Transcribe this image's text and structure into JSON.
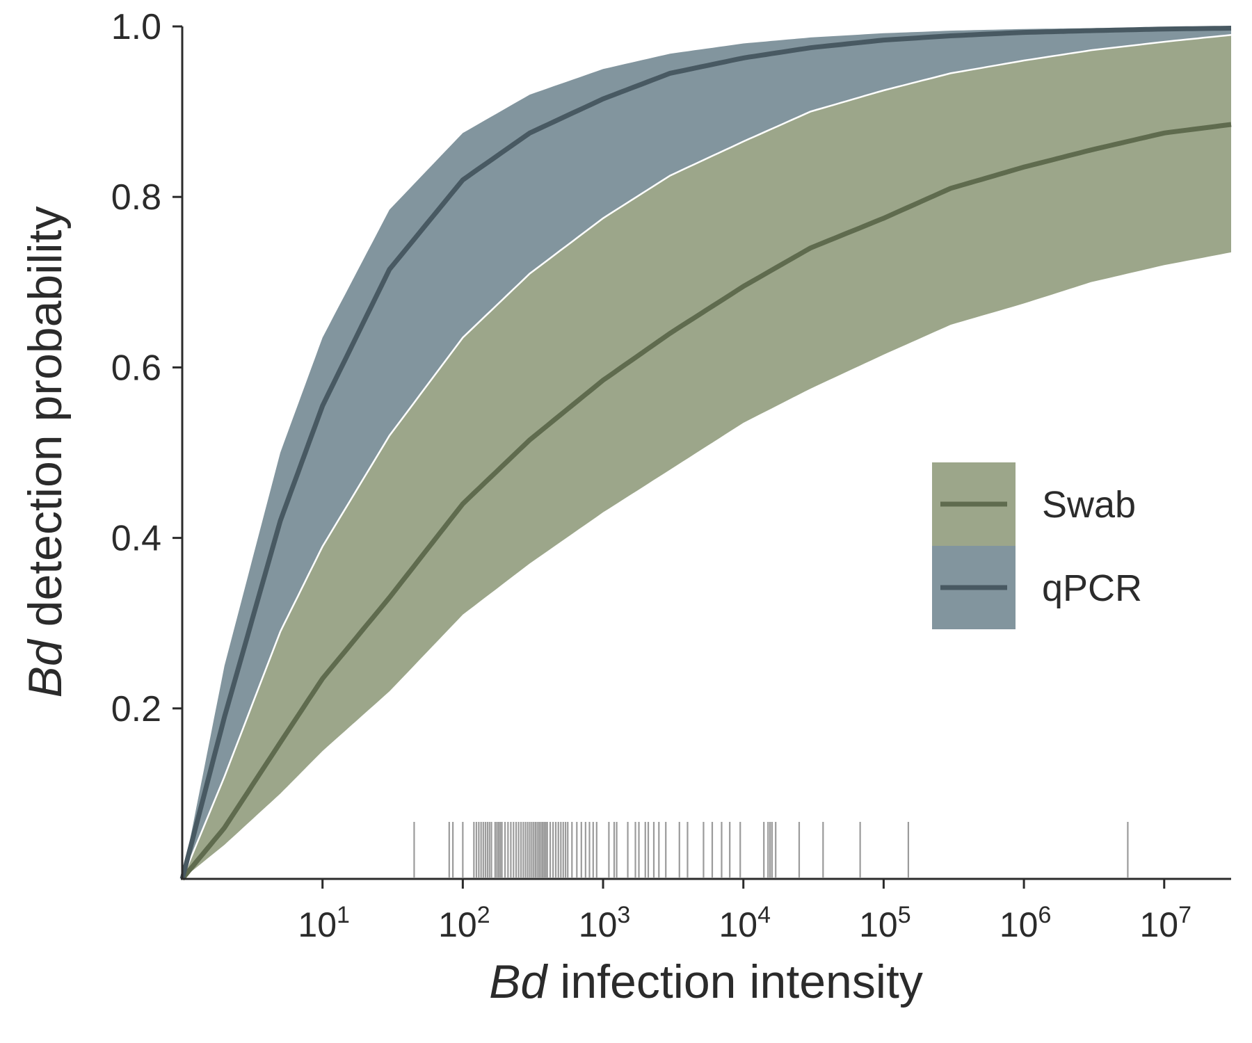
{
  "chart_data": {
    "type": "line",
    "xscale": "log",
    "xlim": [
      1,
      30000000
    ],
    "ylim": [
      0,
      1.0
    ],
    "grid": false,
    "xlabel": {
      "italic": "Bd",
      "rest": " infection intensity"
    },
    "ylabel": {
      "italic": "Bd",
      "rest": " detection probability"
    },
    "x_ticks": [
      {
        "value": 10,
        "base": "10",
        "exp": "1"
      },
      {
        "value": 100,
        "base": "10",
        "exp": "2"
      },
      {
        "value": 1000,
        "base": "10",
        "exp": "3"
      },
      {
        "value": 10000,
        "base": "10",
        "exp": "4"
      },
      {
        "value": 100000,
        "base": "10",
        "exp": "5"
      },
      {
        "value": 1000000,
        "base": "10",
        "exp": "6"
      },
      {
        "value": 10000000,
        "base": "10",
        "exp": "7"
      }
    ],
    "y_ticks": [
      {
        "value": 0.2,
        "label": "0.2"
      },
      {
        "value": 0.4,
        "label": "0.4"
      },
      {
        "value": 0.6,
        "label": "0.6"
      },
      {
        "value": 0.8,
        "label": "0.8"
      },
      {
        "value": 1.0,
        "label": "1.0"
      }
    ],
    "legend": {
      "position": "center-right"
    },
    "series": [
      {
        "name": "Swab",
        "line_color": "#5f6b4e",
        "band_color": "#9ca68a",
        "x": [
          1,
          2,
          5,
          10,
          30,
          100,
          300,
          1000,
          3000,
          10000,
          30000,
          100000,
          300000,
          1000000,
          3000000,
          10000000,
          30000000
        ],
        "mean": [
          0.0,
          0.06,
          0.16,
          0.235,
          0.33,
          0.44,
          0.515,
          0.585,
          0.64,
          0.695,
          0.74,
          0.775,
          0.81,
          0.835,
          0.855,
          0.875,
          0.885
        ],
        "lower": [
          0.0,
          0.04,
          0.1,
          0.15,
          0.22,
          0.31,
          0.37,
          0.43,
          0.48,
          0.535,
          0.575,
          0.615,
          0.65,
          0.675,
          0.7,
          0.72,
          0.735
        ],
        "upper": [
          0.0,
          0.12,
          0.29,
          0.39,
          0.52,
          0.635,
          0.71,
          0.775,
          0.825,
          0.865,
          0.9,
          0.925,
          0.945,
          0.96,
          0.972,
          0.982,
          0.99
        ]
      },
      {
        "name": "qPCR",
        "line_color": "#485962",
        "band_color": "#82959e",
        "x": [
          1,
          2,
          5,
          10,
          30,
          100,
          300,
          1000,
          3000,
          10000,
          30000,
          100000,
          300000,
          1000000,
          3000000,
          10000000,
          30000000
        ],
        "mean": [
          0.0,
          0.19,
          0.42,
          0.555,
          0.715,
          0.82,
          0.875,
          0.915,
          0.945,
          0.963,
          0.975,
          0.984,
          0.989,
          0.993,
          0.995,
          0.997,
          0.998
        ],
        "lower": [
          0.0,
          0.12,
          0.29,
          0.39,
          0.52,
          0.635,
          0.71,
          0.775,
          0.825,
          0.865,
          0.9,
          0.925,
          0.945,
          0.96,
          0.972,
          0.982,
          0.99
        ],
        "upper": [
          0.0,
          0.25,
          0.5,
          0.635,
          0.785,
          0.875,
          0.92,
          0.95,
          0.968,
          0.98,
          0.987,
          0.992,
          0.995,
          0.997,
          0.998,
          0.999,
          1.0
        ]
      }
    ],
    "rug": {
      "color": "#8a8a8a",
      "x": [
        45,
        80,
        85,
        100,
        120,
        125,
        130,
        135,
        140,
        145,
        150,
        155,
        160,
        170,
        175,
        180,
        185,
        190,
        200,
        210,
        220,
        230,
        240,
        250,
        260,
        270,
        280,
        290,
        300,
        310,
        320,
        330,
        340,
        350,
        360,
        370,
        380,
        390,
        400,
        420,
        440,
        460,
        480,
        500,
        520,
        540,
        560,
        600,
        650,
        700,
        750,
        800,
        850,
        900,
        1100,
        1200,
        1250,
        1500,
        1700,
        1800,
        2000,
        2100,
        2300,
        2500,
        2800,
        3500,
        4000,
        5200,
        6000,
        7000,
        8000,
        9500,
        14000,
        15000,
        15500,
        16000,
        17000,
        25000,
        37000,
        68000,
        150000,
        5500000
      ]
    }
  }
}
